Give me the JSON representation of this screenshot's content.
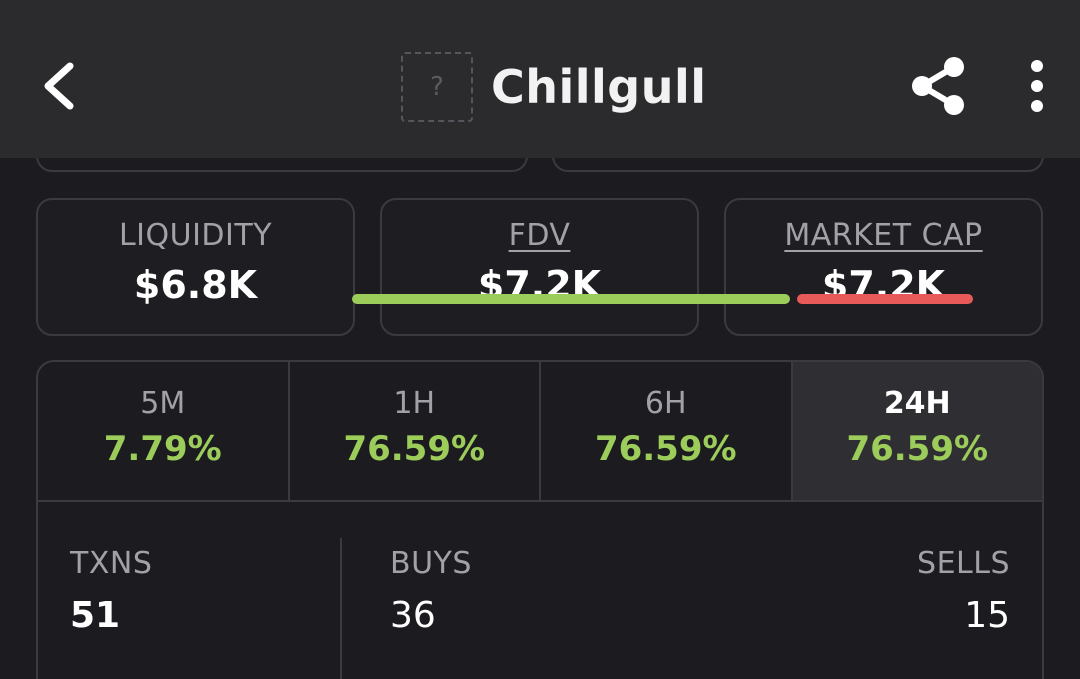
{
  "header": {
    "title": "Chillgull",
    "logo_placeholder": "?",
    "icons": {
      "back": "chevron-left-icon",
      "share": "share-icon",
      "more": "more-vertical-icon"
    }
  },
  "stats": [
    {
      "label": "LIQUIDITY",
      "value": "$6.8K"
    },
    {
      "label": "FDV",
      "value": "$7.2K"
    },
    {
      "label": "MARKET CAP",
      "value": "$7.2K"
    }
  ],
  "timeframes": [
    {
      "label": "5M",
      "change": "7.79%"
    },
    {
      "label": "1H",
      "change": "76.59%"
    },
    {
      "label": "6H",
      "change": "76.59%"
    },
    {
      "label": "24H",
      "change": "76.59%",
      "selected": true
    }
  ],
  "transactions": {
    "txns_label": "TXNS",
    "txns_value": "51",
    "buys_label": "BUYS",
    "buys_value": "36",
    "sells_label": "SELLS",
    "sells_value": "15"
  },
  "colors": {
    "background": "#1c1c20",
    "header": "#2b2b2e",
    "positive": "#9ccc5a",
    "buy_bar": "#9ccc5a",
    "sell_bar": "#e85a5a",
    "selected_tab": "#2f2f33"
  }
}
